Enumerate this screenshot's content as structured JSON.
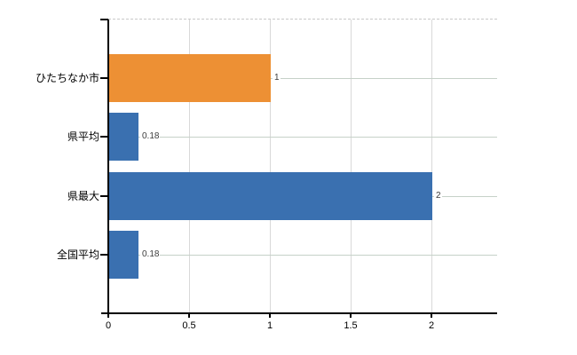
{
  "chart_data": {
    "type": "bar",
    "orientation": "horizontal",
    "title": "",
    "categories": [
      "ひたちなか市",
      "県平均",
      "県最大",
      "全国平均"
    ],
    "values": [
      1,
      0.18,
      2,
      0.18
    ],
    "value_labels": [
      "1",
      "0.18",
      "2",
      "0.18"
    ],
    "bar_colors": [
      "#ed9034",
      "#3a70b0",
      "#3a70b0",
      "#3a70b0"
    ],
    "x_tick_labels": [
      "0",
      "0.5",
      "1",
      "1.5",
      "2"
    ],
    "x_tick_values": [
      0,
      0.5,
      1,
      1.5,
      2
    ],
    "xlim": [
      0,
      2.4
    ],
    "grid": true,
    "legend_position": "none",
    "colors": {
      "highlight_bar": "#ed9034",
      "default_bar": "#3a70b0",
      "axis": "#000000",
      "vertical_grid": "#d9d9d9",
      "row_line": "#c6d1c8",
      "top_border": "#c9c9c9",
      "value_label": "#3c3c3c",
      "tick_label": "#000000",
      "background": "#ffffff"
    }
  }
}
